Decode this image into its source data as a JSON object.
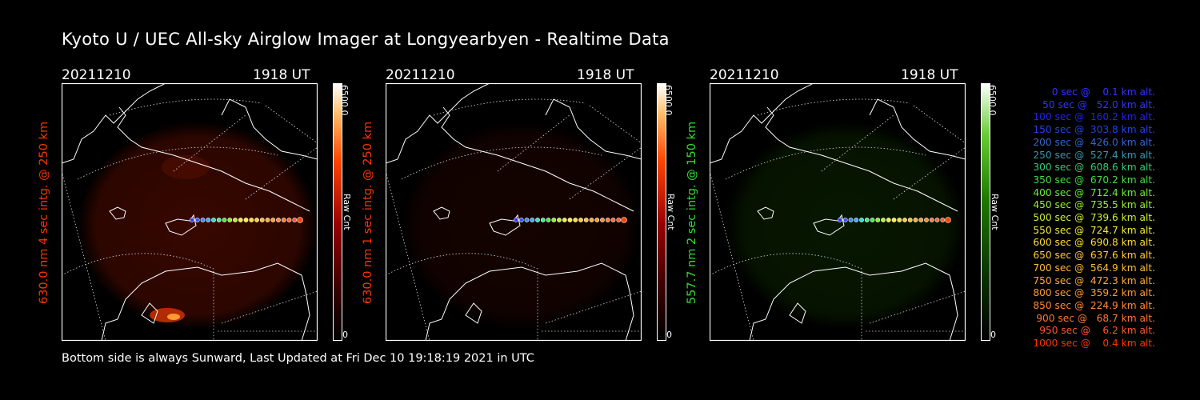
{
  "title": "Kyoto U / UEC All-sky Airglow Imager at Longyearbyen - Realtime Data",
  "footer": "Bottom side is always Sunward, Last Updated at Fri Dec 10 19:18:19 2021 in UTC",
  "panels": [
    {
      "date": "20211210",
      "time": "1918 UT",
      "label": "630.0 nm 4 sec intg. @ 250 km",
      "label_color": "#ff3300",
      "cbar_max": "6500.0",
      "cbar_min": "0",
      "cbar_unit": "Raw Cnt",
      "colormap": "red"
    },
    {
      "date": "20211210",
      "time": "1918 UT",
      "label": "630.0 nm 1 sec intg. @ 250 km",
      "label_color": "#ff3300",
      "cbar_max": "6500.0",
      "cbar_min": "0",
      "cbar_unit": "Raw Cnt",
      "colormap": "red"
    },
    {
      "date": "20211210",
      "time": "1918 UT",
      "label": "557.7 nm 2 sec intg. @ 150 km",
      "label_color": "#33dd33",
      "cbar_max": "6500.0",
      "cbar_min": "0",
      "cbar_unit": "Raw Cnt",
      "colormap": "green"
    }
  ],
  "legend": [
    {
      "text": "0 sec @    0.1 km alt.",
      "color": "#3333ff"
    },
    {
      "text": "50 sec @   52.0 km alt.",
      "color": "#3333ff"
    },
    {
      "text": "100 sec @  160.2 km alt.",
      "color": "#2222ee"
    },
    {
      "text": "150 sec @  303.8 km alt.",
      "color": "#2244dd"
    },
    {
      "text": "200 sec @  426.0 km alt.",
      "color": "#3366cc"
    },
    {
      "text": "250 sec @  527.4 km alt.",
      "color": "#3399aa"
    },
    {
      "text": "300 sec @  608.6 km alt.",
      "color": "#33cc77"
    },
    {
      "text": "350 sec @  670.2 km alt.",
      "color": "#44dd44"
    },
    {
      "text": "400 sec @  712.4 km alt.",
      "color": "#66ee33"
    },
    {
      "text": "450 sec @  735.5 km alt.",
      "color": "#99ee33"
    },
    {
      "text": "500 sec @  739.6 km alt.",
      "color": "#ccee33"
    },
    {
      "text": "550 sec @  724.7 km alt.",
      "color": "#eeee33"
    },
    {
      "text": "600 sec @  690.8 km alt.",
      "color": "#ffdd33"
    },
    {
      "text": "650 sec @  637.6 km alt.",
      "color": "#ffcc33"
    },
    {
      "text": "700 sec @  564.9 km alt.",
      "color": "#ffbb33"
    },
    {
      "text": "750 sec @  472.3 km alt.",
      "color": "#ffaa33"
    },
    {
      "text": "800 sec @  359.2 km alt.",
      "color": "#ff9933"
    },
    {
      "text": "850 sec @  224.9 km alt.",
      "color": "#ff8833"
    },
    {
      "text": "900 sec @   68.7 km alt.",
      "color": "#ff7733"
    },
    {
      "text": "950 sec @    6.2 km alt.",
      "color": "#ff5533"
    },
    {
      "text": "1000 sec @    0.4 km alt.",
      "color": "#ff3300"
    }
  ]
}
